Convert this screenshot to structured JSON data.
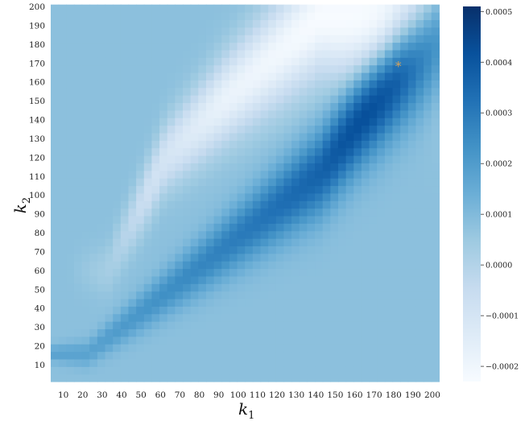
{
  "chart_data": {
    "type": "heatmap",
    "title": "",
    "colormap": "Blues",
    "xlabel": {
      "main": "k",
      "sub": "1"
    },
    "ylabel": {
      "main": "k",
      "sub": "2"
    },
    "xlim": [
      1,
      200
    ],
    "ylim": [
      1,
      200
    ],
    "x_ticks": [
      10,
      20,
      30,
      40,
      50,
      60,
      70,
      80,
      90,
      100,
      110,
      120,
      130,
      140,
      150,
      160,
      170,
      180,
      190,
      200
    ],
    "y_ticks": [
      10,
      20,
      30,
      40,
      50,
      60,
      70,
      80,
      90,
      100,
      110,
      120,
      130,
      140,
      150,
      160,
      170,
      180,
      190,
      200
    ],
    "colorbar": {
      "vmin": -0.00023,
      "vmax": 0.00051,
      "ticks": [
        -0.0002,
        -0.0001,
        0.0,
        0.0001,
        0.0002,
        0.0003,
        0.0004,
        0.0005
      ],
      "tick_labels": [
        "−0.0002",
        "−0.0001",
        "0.0000",
        "0.0001",
        "0.0002",
        "0.0003",
        "0.0004",
        "0.0005"
      ]
    },
    "background_value": 8e-05,
    "ridge": [
      {
        "k1": 20,
        "k2": 16,
        "value": 0.00018
      },
      {
        "k1": 60,
        "k2": 48,
        "value": 0.00024
      },
      {
        "k1": 100,
        "k2": 80,
        "value": 0.0003
      },
      {
        "k1": 140,
        "k2": 112,
        "value": 0.00037
      },
      {
        "k1": 160,
        "k2": 140,
        "value": 0.00044
      },
      {
        "k1": 180,
        "k2": 165,
        "value": 0.00051
      },
      {
        "k1": 200,
        "k2": 185,
        "value": 0.0005
      }
    ],
    "low_band": [
      {
        "k1": 30,
        "k2": 60,
        "value": -2e-05
      },
      {
        "k1": 60,
        "k2": 120,
        "value": -0.0001
      },
      {
        "k1": 90,
        "k2": 150,
        "value": -0.00018
      },
      {
        "k1": 140,
        "k2": 195,
        "value": -0.00023
      }
    ],
    "marker": {
      "symbol": "*",
      "k1": 180,
      "k2": 169,
      "color": "#d4a05a"
    }
  }
}
